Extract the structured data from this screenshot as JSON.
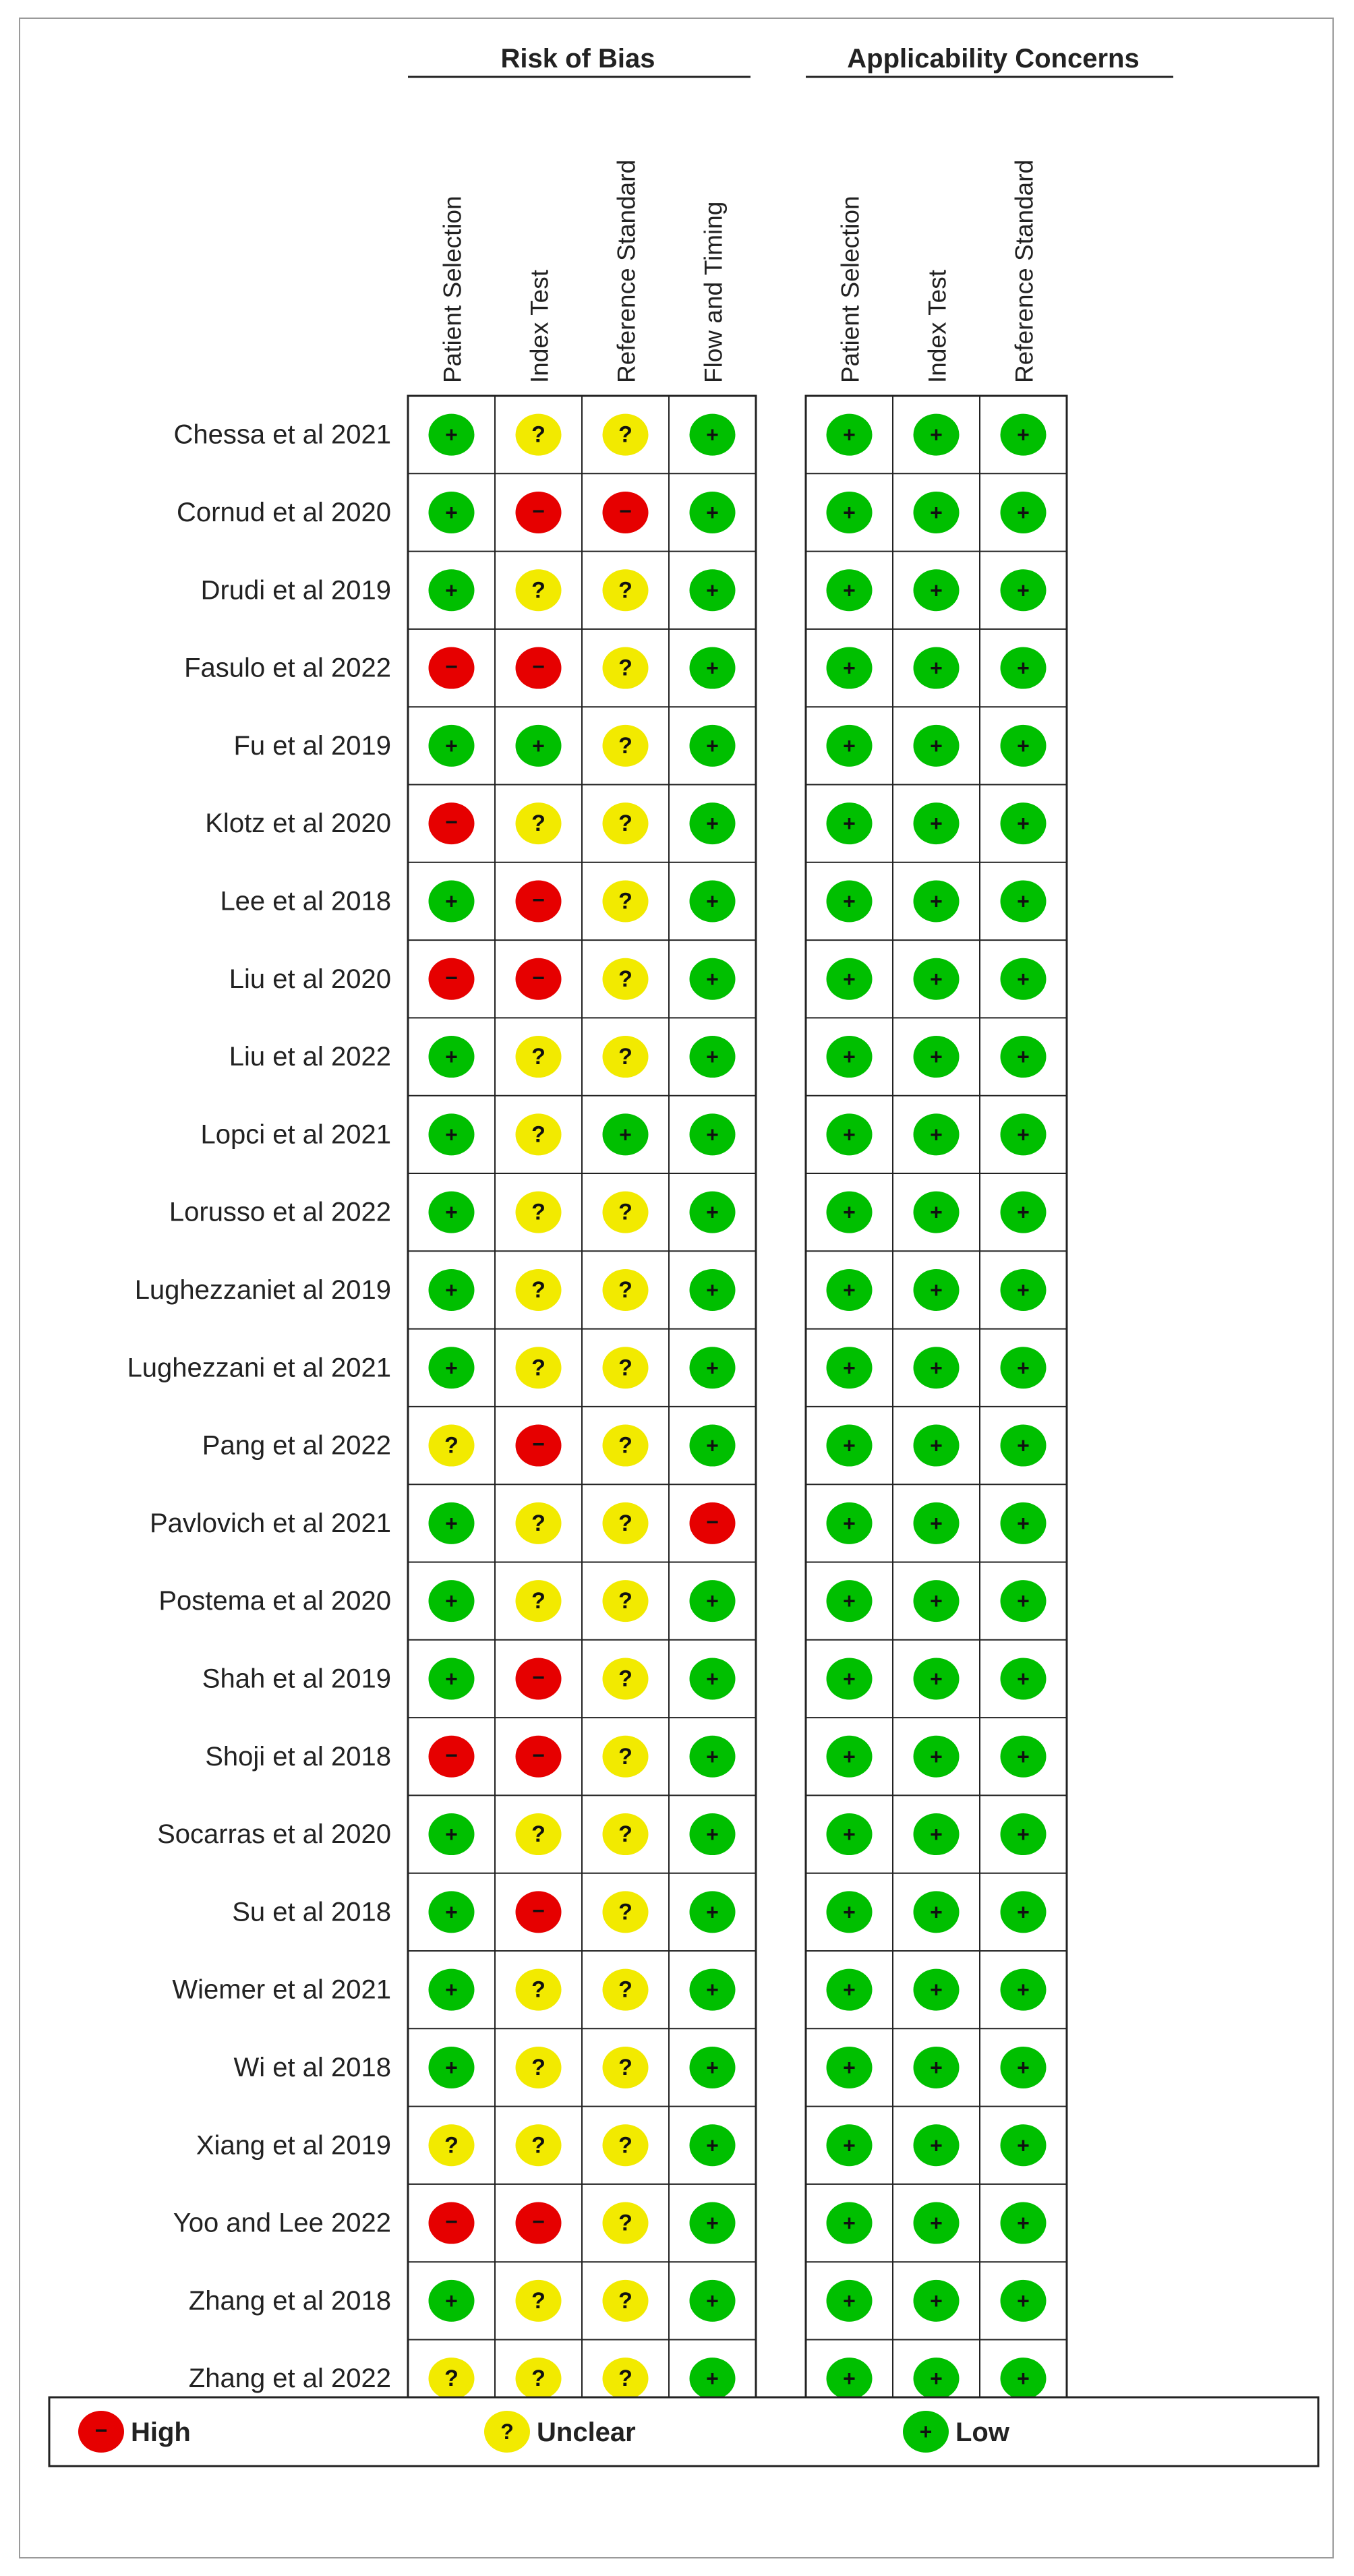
{
  "chart_data": {
    "type": "table",
    "title": "",
    "groups": [
      {
        "label": "Risk of Bias",
        "columns": [
          "Patient Selection",
          "Index Test",
          "Reference Standard",
          "Flow and Timing"
        ]
      },
      {
        "label": "Applicability Concerns",
        "columns": [
          "Patient Selection",
          "Index Test",
          "Reference Standard"
        ]
      }
    ],
    "rows": [
      {
        "study": "Chessa et al 2021",
        "risk": [
          "Low",
          "Unclear",
          "Unclear",
          "Low"
        ],
        "applicability": [
          "Low",
          "Low",
          "Low"
        ]
      },
      {
        "study": "Cornud et al 2020",
        "risk": [
          "Low",
          "High",
          "High",
          "Low"
        ],
        "applicability": [
          "Low",
          "Low",
          "Low"
        ]
      },
      {
        "study": "Drudi et al 2019",
        "risk": [
          "Low",
          "Unclear",
          "Unclear",
          "Low"
        ],
        "applicability": [
          "Low",
          "Low",
          "Low"
        ]
      },
      {
        "study": "Fasulo et al 2022",
        "risk": [
          "High",
          "High",
          "Unclear",
          "Low"
        ],
        "applicability": [
          "Low",
          "Low",
          "Low"
        ]
      },
      {
        "study": "Fu et al 2019",
        "risk": [
          "Low",
          "Low",
          "Unclear",
          "Low"
        ],
        "applicability": [
          "Low",
          "Low",
          "Low"
        ]
      },
      {
        "study": "Klotz et al 2020",
        "risk": [
          "High",
          "Unclear",
          "Unclear",
          "Low"
        ],
        "applicability": [
          "Low",
          "Low",
          "Low"
        ]
      },
      {
        "study": "Lee et al 2018",
        "risk": [
          "Low",
          "High",
          "Unclear",
          "Low"
        ],
        "applicability": [
          "Low",
          "Low",
          "Low"
        ]
      },
      {
        "study": "Liu et al 2020",
        "risk": [
          "High",
          "High",
          "Unclear",
          "Low"
        ],
        "applicability": [
          "Low",
          "Low",
          "Low"
        ]
      },
      {
        "study": "Liu et al 2022",
        "risk": [
          "Low",
          "Unclear",
          "Unclear",
          "Low"
        ],
        "applicability": [
          "Low",
          "Low",
          "Low"
        ]
      },
      {
        "study": "Lopci et al 2021",
        "risk": [
          "Low",
          "Unclear",
          "Low",
          "Low"
        ],
        "applicability": [
          "Low",
          "Low",
          "Low"
        ]
      },
      {
        "study": "Lorusso et al 2022",
        "risk": [
          "Low",
          "Unclear",
          "Unclear",
          "Low"
        ],
        "applicability": [
          "Low",
          "Low",
          "Low"
        ]
      },
      {
        "study": "Lughezzaniet al 2019",
        "risk": [
          "Low",
          "Unclear",
          "Unclear",
          "Low"
        ],
        "applicability": [
          "Low",
          "Low",
          "Low"
        ]
      },
      {
        "study": "Lughezzani et al 2021",
        "risk": [
          "Low",
          "Unclear",
          "Unclear",
          "Low"
        ],
        "applicability": [
          "Low",
          "Low",
          "Low"
        ]
      },
      {
        "study": "Pang et al 2022",
        "risk": [
          "Unclear",
          "High",
          "Unclear",
          "Low"
        ],
        "applicability": [
          "Low",
          "Low",
          "Low"
        ]
      },
      {
        "study": "Pavlovich et al 2021",
        "risk": [
          "Low",
          "Unclear",
          "Unclear",
          "High"
        ],
        "applicability": [
          "Low",
          "Low",
          "Low"
        ]
      },
      {
        "study": "Postema et al 2020",
        "risk": [
          "Low",
          "Unclear",
          "Unclear",
          "Low"
        ],
        "applicability": [
          "Low",
          "Low",
          "Low"
        ]
      },
      {
        "study": "Shah et al 2019",
        "risk": [
          "Low",
          "High",
          "Unclear",
          "Low"
        ],
        "applicability": [
          "Low",
          "Low",
          "Low"
        ]
      },
      {
        "study": "Shoji et al 2018",
        "risk": [
          "High",
          "High",
          "Unclear",
          "Low"
        ],
        "applicability": [
          "Low",
          "Low",
          "Low"
        ]
      },
      {
        "study": "Socarras et al 2020",
        "risk": [
          "Low",
          "Unclear",
          "Unclear",
          "Low"
        ],
        "applicability": [
          "Low",
          "Low",
          "Low"
        ]
      },
      {
        "study": "Su et al 2018",
        "risk": [
          "Low",
          "High",
          "Unclear",
          "Low"
        ],
        "applicability": [
          "Low",
          "Low",
          "Low"
        ]
      },
      {
        "study": "Wiemer et al 2021",
        "risk": [
          "Low",
          "Unclear",
          "Unclear",
          "Low"
        ],
        "applicability": [
          "Low",
          "Low",
          "Low"
        ]
      },
      {
        "study": "Wi et al 2018",
        "risk": [
          "Low",
          "Unclear",
          "Unclear",
          "Low"
        ],
        "applicability": [
          "Low",
          "Low",
          "Low"
        ]
      },
      {
        "study": "Xiang et al 2019",
        "risk": [
          "Unclear",
          "Unclear",
          "Unclear",
          "Low"
        ],
        "applicability": [
          "Low",
          "Low",
          "Low"
        ]
      },
      {
        "study": "Yoo and Lee 2022",
        "risk": [
          "High",
          "High",
          "Unclear",
          "Low"
        ],
        "applicability": [
          "Low",
          "Low",
          "Low"
        ]
      },
      {
        "study": "Zhang et al 2018",
        "risk": [
          "Low",
          "Unclear",
          "Unclear",
          "Low"
        ],
        "applicability": [
          "Low",
          "Low",
          "Low"
        ]
      },
      {
        "study": "Zhang et al 2022",
        "risk": [
          "Unclear",
          "Unclear",
          "Unclear",
          "Low"
        ],
        "applicability": [
          "Low",
          "Low",
          "Low"
        ]
      }
    ],
    "levels": {
      "High": {
        "symbol": "−",
        "color": "#e60000"
      },
      "Unclear": {
        "symbol": "?",
        "color": "#f2ea00"
      },
      "Low": {
        "symbol": "+",
        "color": "#00bf00"
      }
    },
    "legend": [
      {
        "level": "High",
        "label": "High"
      },
      {
        "level": "Unclear",
        "label": "Unclear"
      },
      {
        "level": "Low",
        "label": "Low"
      }
    ],
    "legend_position": "bottom"
  }
}
